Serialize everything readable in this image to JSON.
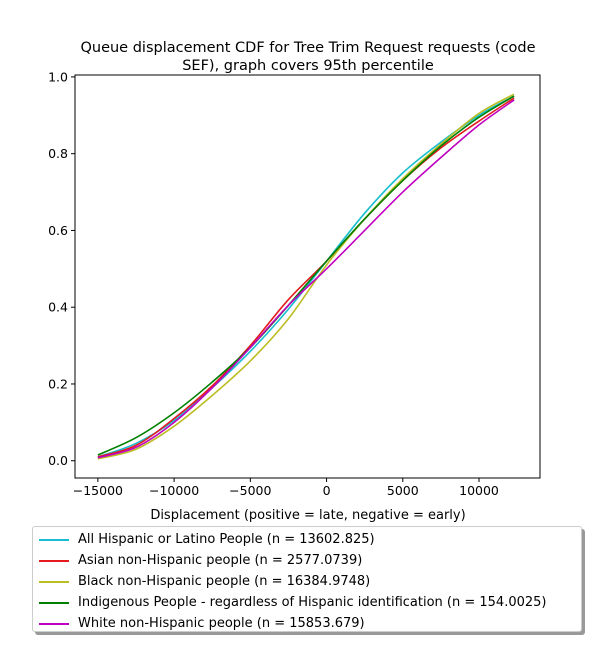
{
  "chart_data": {
    "type": "line",
    "title": "Queue displacement CDF for Tree Trim Request  requests (code SEF), graph covers 95th percentile",
    "title_lines": [
      "Queue displacement CDF for Tree Trim Request  requests (code",
      "SEF), graph covers 95th percentile"
    ],
    "xlabel": "Displacement (positive = late, negative = early)",
    "ylabel": "",
    "xlim": [
      -16500,
      14000
    ],
    "ylim": [
      -0.045,
      1.005
    ],
    "xticks": [
      -15000,
      -10000,
      -5000,
      0,
      5000,
      10000
    ],
    "xtick_labels": [
      "−15000",
      "−10000",
      "−5000",
      "0",
      "5000",
      "10000"
    ],
    "yticks": [
      0.0,
      0.2,
      0.4,
      0.6,
      0.8,
      1.0
    ],
    "ytick_labels": [
      "0.0",
      "0.2",
      "0.4",
      "0.6",
      "0.8",
      "1.0"
    ],
    "grid": false,
    "legend_position": "below",
    "series": [
      {
        "name": "All Hispanic or Latino People (n = 13602.825)",
        "color": "#17becf",
        "x": [
          -15000,
          -12500,
          -10000,
          -7500,
          -5000,
          -2500,
          0,
          2500,
          5000,
          7500,
          10000,
          12300
        ],
        "y": [
          0.01,
          0.045,
          0.105,
          0.19,
          0.285,
          0.395,
          0.52,
          0.645,
          0.75,
          0.83,
          0.9,
          0.95
        ]
      },
      {
        "name": "Asian non-Hispanic people (n = 2577.0739)",
        "color": "#e41a1c",
        "x": [
          -15000,
          -12500,
          -10000,
          -7500,
          -5000,
          -2500,
          0,
          2500,
          5000,
          7500,
          10000,
          12300
        ],
        "y": [
          0.01,
          0.04,
          0.11,
          0.195,
          0.3,
          0.42,
          0.52,
          0.63,
          0.73,
          0.815,
          0.885,
          0.945
        ]
      },
      {
        "name": "Black non-Hispanic people (n = 16384.9748)",
        "color": "#bcbd22",
        "x": [
          -15000,
          -12500,
          -10000,
          -7500,
          -5000,
          -2500,
          0,
          2500,
          5000,
          7500,
          10000,
          12300
        ],
        "y": [
          0.005,
          0.03,
          0.09,
          0.17,
          0.26,
          0.37,
          0.51,
          0.63,
          0.735,
          0.825,
          0.905,
          0.955
        ]
      },
      {
        "name": "Indigenous People - regardless of Hispanic identification (n = 154.0025)",
        "color": "#008000",
        "x": [
          -15000,
          -12500,
          -10000,
          -7500,
          -5000,
          -2500,
          0,
          2500,
          5000,
          7500,
          10000,
          12300
        ],
        "y": [
          0.015,
          0.06,
          0.125,
          0.205,
          0.295,
          0.405,
          0.52,
          0.63,
          0.73,
          0.82,
          0.895,
          0.95
        ]
      },
      {
        "name": "White non-Hispanic people (n = 15853.679)",
        "color": "#c000c0",
        "x": [
          -15000,
          -12500,
          -10000,
          -7500,
          -5000,
          -2500,
          0,
          2500,
          5000,
          7500,
          10000,
          12300
        ],
        "y": [
          0.008,
          0.035,
          0.1,
          0.19,
          0.295,
          0.405,
          0.5,
          0.6,
          0.7,
          0.79,
          0.875,
          0.94
        ]
      }
    ]
  }
}
